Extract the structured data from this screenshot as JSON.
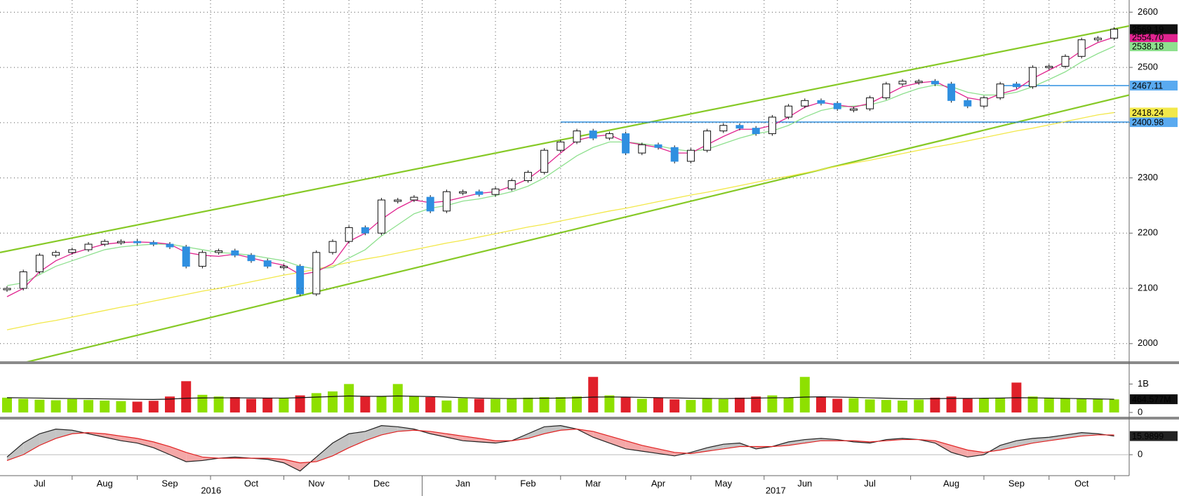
{
  "chart_data": [
    {
      "type": "price",
      "categories": [
        null,
        null,
        "Jul",
        null,
        null,
        null,
        "Aug",
        null,
        null,
        null,
        "Sep",
        null,
        null,
        null,
        null,
        "Oct",
        null,
        null,
        null,
        "Nov",
        null,
        null,
        null,
        "Dec",
        null,
        null,
        null,
        null,
        "Jan",
        null,
        null,
        null,
        "Feb",
        null,
        null,
        null,
        "Mar",
        null,
        null,
        null,
        "Apr",
        null,
        null,
        null,
        "May",
        null,
        null,
        null,
        null,
        "Jun",
        null,
        null,
        null,
        "Jul",
        null,
        null,
        null,
        null,
        "Aug",
        null,
        null,
        null,
        "Sep",
        null,
        null,
        null,
        "Oct",
        null,
        null
      ],
      "years": [
        {
          "label": "2016",
          "from": 0
        },
        {
          "label": "2017",
          "from": 26
        }
      ],
      "ylim": [
        1968,
        2622
      ],
      "yticks": [
        2000,
        2100,
        2200,
        2300,
        2400,
        2500,
        2600
      ],
      "grid": true,
      "series": [
        {
          "color": "#111111",
          "candles": true,
          "up_color": "#ffffff",
          "down_color": "#2f8fe0",
          "tag": true,
          "values": [
            2100,
            2130,
            2160,
            2165,
            2170,
            2180,
            2185,
            2185,
            2183,
            2180,
            2175,
            2140,
            2165,
            2168,
            2160,
            2150,
            2140,
            2140,
            2090,
            2165,
            2185,
            2210,
            2200,
            2260,
            2260,
            2265,
            2240,
            2275,
            2275,
            2270,
            2280,
            2295,
            2310,
            2350,
            2365,
            2385,
            2372,
            2380,
            2345,
            2360,
            2355,
            2330,
            2350,
            2385,
            2395,
            2390,
            2380,
            2410,
            2430,
            2440,
            2435,
            2425,
            2425,
            2445,
            2470,
            2475,
            2475,
            2470,
            2440,
            2430,
            2445,
            2470,
            2465,
            2500,
            2502,
            2520,
            2550,
            2553,
            2569.19
          ]
        },
        {
          "color": "#e0248f",
          "tag": true,
          "tag_label": "2554.70",
          "values": [
            2085,
            2100,
            2130,
            2150,
            2163,
            2172,
            2180,
            2183,
            2184,
            2183,
            2180,
            2165,
            2160,
            2158,
            2162,
            2155,
            2148,
            2142,
            2125,
            2130,
            2145,
            2185,
            2200,
            2225,
            2245,
            2260,
            2255,
            2258,
            2265,
            2272,
            2275,
            2285,
            2298,
            2320,
            2345,
            2368,
            2375,
            2378,
            2365,
            2360,
            2355,
            2345,
            2345,
            2360,
            2375,
            2388,
            2388,
            2395,
            2410,
            2428,
            2437,
            2432,
            2428,
            2435,
            2450,
            2465,
            2472,
            2475,
            2460,
            2445,
            2440,
            2452,
            2460,
            2480,
            2495,
            2510,
            2530,
            2545,
            2554.7
          ]
        },
        {
          "color": "#8ee08e",
          "tag": true,
          "values": [
            2105,
            2110,
            2125,
            2140,
            2150,
            2160,
            2170,
            2175,
            2178,
            2180,
            2180,
            2175,
            2170,
            2165,
            2163,
            2160,
            2155,
            2150,
            2140,
            2135,
            2138,
            2155,
            2170,
            2195,
            2215,
            2235,
            2245,
            2250,
            2258,
            2262,
            2268,
            2275,
            2285,
            2300,
            2320,
            2340,
            2355,
            2365,
            2365,
            2362,
            2358,
            2352,
            2348,
            2352,
            2362,
            2372,
            2380,
            2385,
            2395,
            2410,
            2422,
            2428,
            2430,
            2432,
            2440,
            2452,
            2462,
            2468,
            2465,
            2455,
            2450,
            2450,
            2455,
            2465,
            2478,
            2492,
            2510,
            2525,
            2538.18
          ]
        },
        {
          "color": "#f2e84a",
          "tag": true,
          "values": [
            2025,
            2031,
            2037,
            2042,
            2048,
            2054,
            2060,
            2066,
            2071,
            2077,
            2083,
            2089,
            2095,
            2100,
            2106,
            2112,
            2118,
            2124,
            2129,
            2135,
            2141,
            2147,
            2153,
            2158,
            2164,
            2170,
            2176,
            2182,
            2187,
            2193,
            2199,
            2205,
            2211,
            2216,
            2222,
            2228,
            2234,
            2240,
            2245,
            2251,
            2257,
            2263,
            2269,
            2274,
            2280,
            2286,
            2292,
            2298,
            2303,
            2309,
            2315,
            2321,
            2327,
            2332,
            2338,
            2344,
            2350,
            2356,
            2361,
            2367,
            2373,
            2379,
            2385,
            2390,
            2396,
            2402,
            2408,
            2414,
            2418.24
          ]
        }
      ],
      "trendlines": [
        {
          "color": "#86c926",
          "start": 2165,
          "end": 2575
        },
        {
          "color": "#86c926",
          "start": 1955,
          "end": 2450
        }
      ],
      "levels": [
        {
          "value": 2467.11,
          "from": 61,
          "color": "#2f8fe0"
        },
        {
          "value": 2400.98,
          "from": 34,
          "color": "#2f8fe0"
        }
      ]
    },
    {
      "type": "volume",
      "ylim": [
        -150,
        1700
      ],
      "yticks": [
        0,
        {
          "value": 1000,
          "label": "1B"
        }
      ],
      "up_color": "#8ee000",
      "down_color": "#e0202a",
      "values": [
        520,
        480,
        450,
        430,
        470,
        440,
        420,
        400,
        380,
        410,
        560,
        1100,
        620,
        560,
        540,
        480,
        520,
        510,
        600,
        680,
        740,
        1000,
        560,
        580,
        1000,
        580,
        540,
        420,
        500,
        480,
        470,
        480,
        520,
        540,
        540,
        560,
        1250,
        600,
        540,
        480,
        520,
        460,
        440,
        480,
        470,
        520,
        560,
        600,
        520,
        1250,
        540,
        480,
        500,
        460,
        440,
        420,
        450,
        520,
        560,
        480,
        500,
        520,
        1050,
        560,
        520,
        500,
        480,
        470,
        460
      ],
      "series": [
        {
          "color": "#111111",
          "tag": true,
          "tag_label": "464.577M",
          "values": [
            520,
            515,
            505,
            495,
            490,
            485,
            478,
            470,
            462,
            458,
            470,
            500,
            510,
            515,
            515,
            510,
            505,
            505,
            520,
            540,
            560,
            580,
            570,
            565,
            580,
            570,
            560,
            540,
            520,
            505,
            495,
            490,
            495,
            500,
            505,
            520,
            540,
            545,
            540,
            530,
            520,
            510,
            500,
            495,
            490,
            495,
            505,
            515,
            520,
            540,
            550,
            540,
            530,
            515,
            500,
            485,
            480,
            485,
            495,
            495,
            500,
            505,
            520,
            515,
            505,
            495,
            485,
            475,
            464.577
          ]
        }
      ]
    },
    {
      "type": "macd",
      "ylim": [
        -18,
        29
      ],
      "yticks": [
        0
      ],
      "grid": true,
      "above_color": "#c4c4c4",
      "below_color": "#f4a8a8",
      "series": [
        {
          "color": "#222222",
          "tag": true,
          "values": [
            -2,
            10,
            18,
            22,
            21,
            18,
            15,
            12,
            10,
            6,
            0,
            -6,
            -5,
            -3,
            -2,
            -3,
            -4,
            -7,
            -14,
            -2,
            10,
            18,
            20,
            25,
            24,
            22,
            18,
            15,
            12,
            11,
            10,
            12,
            18,
            24,
            25,
            22,
            15,
            10,
            5,
            3,
            1,
            -1,
            2,
            6,
            9,
            10,
            5,
            7,
            11,
            13,
            14,
            13,
            11,
            10,
            13,
            14,
            13,
            10,
            2,
            -2,
            0,
            8,
            12,
            14,
            15,
            17,
            19,
            18,
            15.9899
          ]
        },
        {
          "color": "#e02020",
          "values": [
            -5,
            0,
            8,
            14,
            18,
            19,
            18,
            16,
            14,
            11,
            7,
            2,
            -2,
            -3,
            -3,
            -3,
            -3,
            -4,
            -7,
            -6,
            -1,
            6,
            12,
            17,
            20,
            21,
            20,
            18,
            16,
            14,
            12,
            12,
            14,
            18,
            21,
            22,
            20,
            16,
            12,
            8,
            5,
            2,
            1,
            3,
            5,
            7,
            7,
            7,
            8,
            10,
            12,
            12,
            12,
            11,
            12,
            13,
            13,
            12,
            8,
            4,
            2,
            4,
            7,
            10,
            12,
            14,
            16,
            17,
            17
          ]
        }
      ]
    }
  ]
}
